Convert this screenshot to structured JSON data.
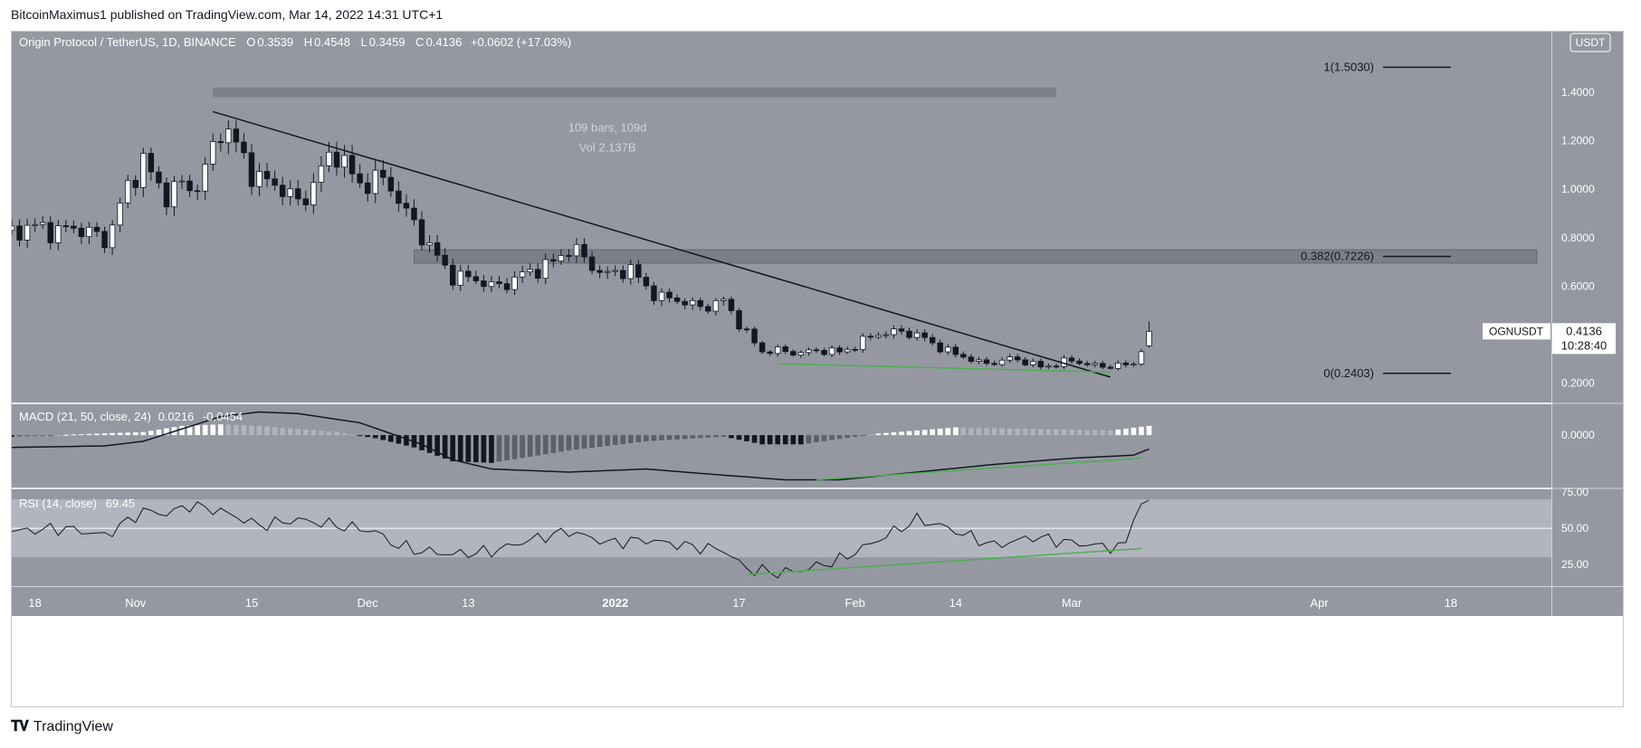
{
  "caption": "BitcoinMaximus1 published on TradingView.com, Mar 14, 2022 14:31 UTC+1",
  "brand": "TradingView",
  "colors": {
    "price_bg": "#9598a1",
    "ind_bg": "#9598a1",
    "axis_bg": "#9598a1",
    "up": "#ffffff",
    "down": "#131722",
    "wick": "#131722",
    "green": "#4caf50",
    "band": "#b2b5be",
    "zone": "#787b86"
  },
  "chart_data": {
    "type": "candlestick",
    "title": "Origin Protocol / TetherUS, 1D, BINANCE",
    "ohlc_labels": {
      "o_label": "O",
      "o": "0.3539",
      "h_label": "H",
      "h": "0.4548",
      "l_label": "L",
      "l": "0.3459",
      "c_label": "C",
      "c": "0.4136",
      "change": "+0.0602 (+17.03%)"
    },
    "currency": "USDT",
    "ticker": "OGNUSDT",
    "last_price": "0.4136",
    "countdown": "10:28:40",
    "price_ticks": [
      "1.4000",
      "1.2000",
      "1.0000",
      "0.8000",
      "0.6000",
      "0.2000"
    ],
    "price_tick_values": [
      1.4,
      1.2,
      1.0,
      0.8,
      0.6,
      0.2
    ],
    "price_range": [
      0.12,
      1.65
    ],
    "x_labels": [
      "18",
      "Nov",
      "15",
      "Dec",
      "13",
      "2022",
      "17",
      "Feb",
      "14",
      "Mar",
      "Apr",
      "18"
    ],
    "x_label_days": [
      -14,
      -1,
      14,
      29,
      42,
      61,
      77,
      92,
      105,
      120,
      152,
      169
    ],
    "x_range_days": [
      -17,
      182
    ],
    "fib_levels": [
      {
        "label": "1(1.5030)",
        "value": 1.503
      },
      {
        "label": "0.382(0.7226)",
        "value": 0.7226
      },
      {
        "label": "0(0.2403)",
        "value": 0.2403
      }
    ],
    "measure": {
      "bars": "109 bars, 109d",
      "vol": "Vol 2.137B",
      "start_day": 9,
      "end_day": 118,
      "low": 1.38,
      "high": 1.42
    },
    "resistance_zone": {
      "low": 0.695,
      "high": 0.75,
      "start_day": 35,
      "end_day": 182
    },
    "trendline": {
      "start_day": 9,
      "start": 1.32,
      "end_day": 125,
      "end": 0.225
    },
    "support_line": {
      "start_day": 82,
      "start": 0.28,
      "end_day": 125,
      "end": 0.245
    },
    "anchor_days": [
      -17,
      -10,
      -5,
      0,
      3,
      7,
      10,
      15,
      20,
      25,
      28,
      32,
      37,
      40,
      45,
      50,
      55,
      60,
      63,
      67,
      72,
      75,
      80,
      85,
      90,
      95,
      98,
      103,
      108,
      112,
      116,
      120,
      124,
      127,
      128,
      129,
      130
    ],
    "anchor_closes": [
      0.83,
      0.84,
      0.8,
      1.12,
      0.98,
      1.02,
      1.25,
      1.05,
      0.95,
      1.15,
      1.03,
      1.02,
      0.75,
      0.65,
      0.6,
      0.65,
      0.75,
      0.65,
      0.66,
      0.55,
      0.52,
      0.53,
      0.33,
      0.33,
      0.33,
      0.4,
      0.42,
      0.35,
      0.28,
      0.3,
      0.27,
      0.29,
      0.27,
      0.27,
      0.28,
      0.35,
      0.4136
    ],
    "macd": {
      "label": "MACD (21, 50, close, 24)",
      "value1": "0.0216",
      "value2": "-0.0454",
      "tick": "0.0000",
      "range": [
        -0.17,
        0.1
      ],
      "signal_days": [
        -17,
        -5,
        0,
        5,
        10,
        15,
        20,
        28,
        36,
        40,
        45,
        55,
        65,
        75,
        83,
        90,
        100,
        110,
        120,
        128,
        130
      ],
      "signal_values": [
        -0.04,
        -0.035,
        -0.02,
        0.02,
        0.06,
        0.075,
        0.07,
        0.04,
        -0.03,
        -0.08,
        -0.11,
        -0.12,
        -0.11,
        -0.13,
        -0.145,
        -0.145,
        -0.12,
        -0.095,
        -0.075,
        -0.065,
        -0.045
      ],
      "hist_days": [
        -17,
        0,
        5,
        10,
        15,
        25,
        30,
        35,
        40,
        45,
        55,
        65,
        75,
        80,
        85,
        95,
        105,
        115,
        125,
        130
      ],
      "hist_values": [
        -0.005,
        0.01,
        0.03,
        0.035,
        0.03,
        0.01,
        -0.01,
        -0.04,
        -0.085,
        -0.09,
        -0.05,
        -0.02,
        -0.005,
        -0.03,
        -0.03,
        0.005,
        0.025,
        0.02,
        0.015,
        0.03
      ],
      "div_line": {
        "start_day": 87,
        "start": -0.145,
        "end_day": 129,
        "end": -0.075
      }
    },
    "rsi": {
      "label": "RSI (14, close)",
      "value": "69.45",
      "ticks": [
        "75.00",
        "50.00",
        "25.00"
      ],
      "tick_values": [
        75,
        50,
        25
      ],
      "range": [
        10,
        77
      ],
      "band": [
        30,
        70
      ],
      "mid": 50,
      "days": [
        -17,
        -10,
        -5,
        -2,
        0,
        3,
        6,
        10,
        15,
        20,
        25,
        30,
        32,
        35,
        40,
        45,
        50,
        55,
        60,
        65,
        70,
        75,
        78,
        82,
        85,
        90,
        95,
        100,
        103,
        106,
        110,
        115,
        120,
        125,
        127,
        128,
        130
      ],
      "values": [
        48,
        50,
        45,
        55,
        62,
        60,
        66,
        62,
        52,
        56,
        52,
        48,
        40,
        35,
        32,
        34,
        42,
        48,
        40,
        42,
        38,
        35,
        22,
        19,
        21,
        28,
        42,
        56,
        52,
        46,
        38,
        44,
        40,
        37,
        38,
        60,
        69.45
      ],
      "div_line": {
        "start_day": 78,
        "start": 18,
        "end_day": 129,
        "end": 36
      }
    }
  }
}
